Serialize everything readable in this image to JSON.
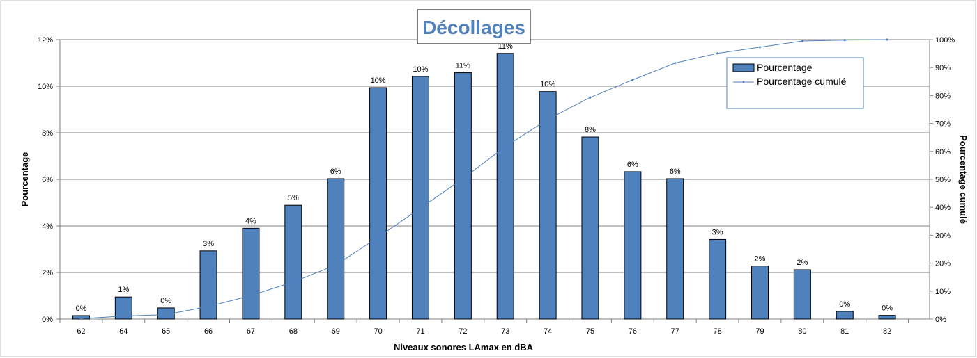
{
  "chart_data": {
    "type": "bar",
    "title": "Décollages",
    "xlabel": "Niveaux sonores LAmax en dBA",
    "ylabel": "Pourcentage",
    "y2label": "Pourcentage cumulé",
    "categories": [
      "62",
      "64",
      "65",
      "66",
      "67",
      "68",
      "69",
      "70",
      "71",
      "72",
      "73",
      "74",
      "75",
      "76",
      "77",
      "78",
      "79",
      "80",
      "81",
      "82"
    ],
    "ylim": [
      0,
      12
    ],
    "y2lim": [
      0,
      100
    ],
    "yticks": [
      "0%",
      "2%",
      "4%",
      "6%",
      "8%",
      "10%",
      "12%"
    ],
    "y2ticks": [
      "0%",
      "10%",
      "20%",
      "30%",
      "40%",
      "50%",
      "60%",
      "70%",
      "80%",
      "90%",
      "100%"
    ],
    "grid": true,
    "legend_position": "top-right",
    "series": [
      {
        "name": "Pourcentage",
        "kind": "bar",
        "axis": "left",
        "color": "#4F81BD",
        "values": [
          0.15,
          0.95,
          0.48,
          2.93,
          3.9,
          4.89,
          6.03,
          9.94,
          10.42,
          10.58,
          11.41,
          9.77,
          7.82,
          6.33,
          6.03,
          3.42,
          2.28,
          2.12,
          0.33,
          0.16
        ],
        "labels": [
          "0%",
          "1%",
          "0%",
          "3%",
          "4%",
          "5%",
          "6%",
          "10%",
          "10%",
          "11%",
          "11%",
          "10%",
          "8%",
          "6%",
          "6%",
          "3%",
          "2%",
          "2%",
          "0%",
          "0%"
        ]
      },
      {
        "name": "Pourcentage cumulé",
        "kind": "line",
        "axis": "right",
        "color": "#4F81BD",
        "values": [
          0.15,
          1.1,
          1.6,
          4.5,
          8.4,
          13.3,
          19.3,
          29.3,
          39.7,
          50.3,
          61.7,
          71.5,
          79.3,
          85.6,
          91.6,
          95.1,
          97.3,
          99.5,
          99.8,
          100
        ]
      }
    ]
  }
}
